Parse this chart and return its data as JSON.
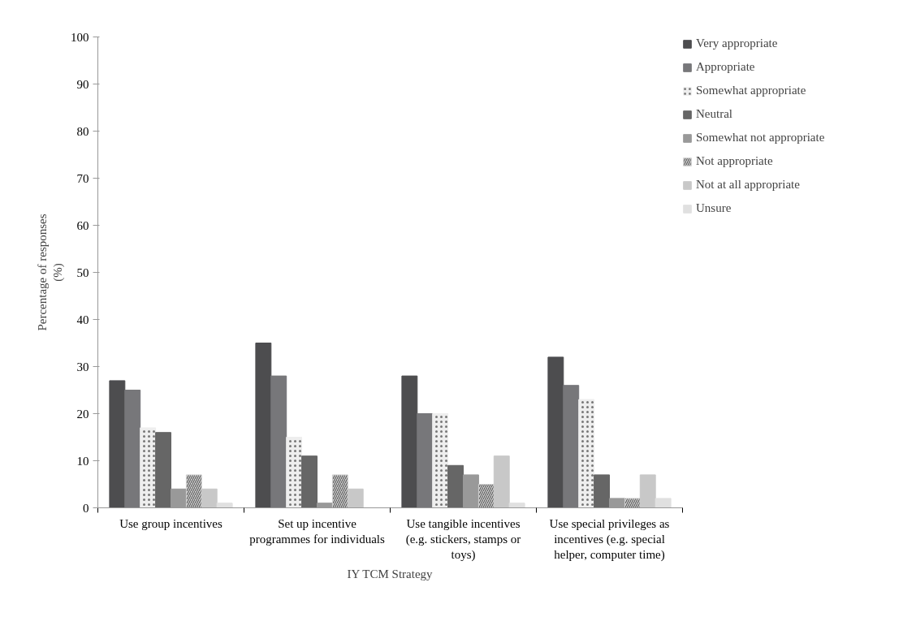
{
  "chart_data": {
    "type": "bar",
    "xlabel": "IY TCM Strategy",
    "ylabel": "Percentage of responses (%)",
    "categories": [
      "Use group incentives",
      "Set up incentive programmes for individuals",
      "Use tangible incentives (e.g. stickers, stamps or toys)",
      "Use special privileges as incentives (e.g. special helper, computer time)"
    ],
    "series": [
      {
        "name": "Very appropriate",
        "color": "#4d4d4f",
        "values": [
          27,
          35,
          28,
          32
        ]
      },
      {
        "name": "Appropriate",
        "color": "#77777a",
        "values": [
          25,
          28,
          20,
          26
        ]
      },
      {
        "name": "Somewhat appropriate",
        "color": "#eeeeee",
        "values": [
          17,
          15,
          20,
          23
        ]
      },
      {
        "name": "Neutral",
        "color": "#666666",
        "values": [
          16,
          11,
          9,
          7
        ]
      },
      {
        "name": "Somewhat not appropriate",
        "color": "#999999",
        "values": [
          4,
          1,
          7,
          2
        ]
      },
      {
        "name": "Not appropriate",
        "color": "#d0d0d0",
        "values": [
          7,
          7,
          5,
          2
        ]
      },
      {
        "name": "Not at all appropriate",
        "color": "#c8c8c8",
        "values": [
          4,
          4,
          11,
          7
        ]
      },
      {
        "name": "Unsure",
        "color": "#e0e0e0",
        "values": [
          1,
          0,
          1,
          2
        ]
      }
    ],
    "ylim": [
      0,
      100
    ],
    "yticks": [
      0,
      10,
      20,
      30,
      40,
      50,
      60,
      70,
      80,
      90,
      100
    ],
    "grid": false,
    "legend": "top right"
  }
}
